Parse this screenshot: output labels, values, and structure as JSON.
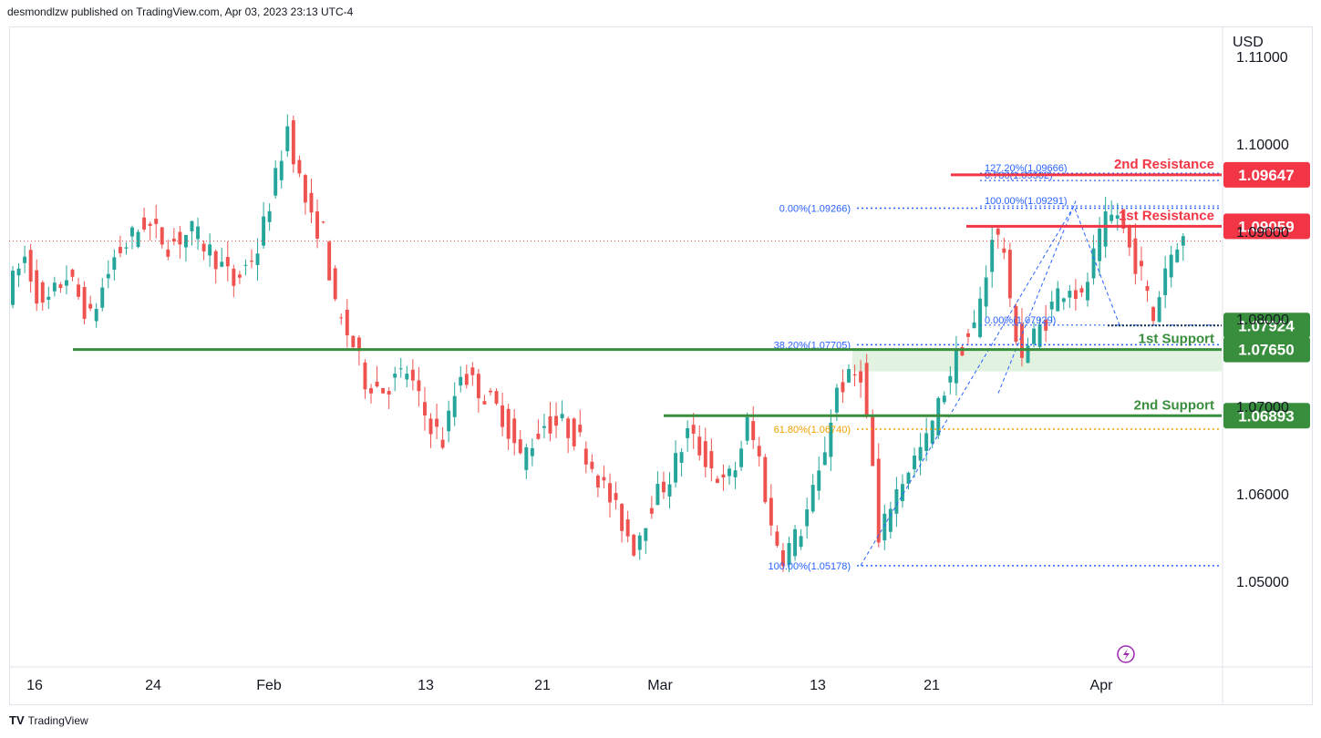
{
  "header": {
    "text": "desmondlzw published on TradingView.com, Apr 03, 2023 23:13 UTC-4"
  },
  "footer": {
    "logo": "TV",
    "brand": "TradingView"
  },
  "colors": {
    "up": "#26a69a",
    "down": "#ef5350",
    "resistance": "#f23645",
    "support": "#388e3c",
    "fib": "#2962ff",
    "fib618": "#f0a000"
  },
  "chart_data": {
    "type": "candlestick",
    "currency": "USD",
    "y_ticks": [
      "1.11000",
      "1.10000",
      "1.09000",
      "1.08000",
      "1.07000",
      "1.06000",
      "1.05000"
    ],
    "ylim": [
      1.03971,
      1.11474
    ],
    "x_ticks": [
      "16",
      "24",
      "Feb",
      "13",
      "21",
      "Mar",
      "13",
      "21",
      "Apr"
    ],
    "last_price": 1.0889,
    "levels": [
      {
        "name": "2nd Resistance",
        "value": 1.09647,
        "label": "1.09647",
        "kind": "resistance"
      },
      {
        "name": "1st Resistance",
        "value": 1.09059,
        "label": "1.09059",
        "kind": "resistance"
      },
      {
        "name": "",
        "value": 1.07924,
        "label": "1.07924",
        "kind": "support"
      },
      {
        "name": "1st Support",
        "value": 1.0765,
        "label": "1.07650",
        "kind": "support"
      },
      {
        "name": "2nd Support",
        "value": 1.06893,
        "label": "1.06893",
        "kind": "support"
      }
    ],
    "fib_retracement": [
      {
        "label": "0.00%(1.09266)",
        "value": 1.09266
      },
      {
        "label": "38.20%(1.07705)",
        "value": 1.07705
      },
      {
        "label": "61.80%(1.06740)",
        "value": 1.0674
      },
      {
        "label": "100.00%(1.05178)",
        "value": 1.05178
      }
    ],
    "fib_extension": [
      {
        "label": "127.20%(1.09666)",
        "value": 1.09666
      },
      {
        "label": "0.786(1.09582)",
        "value": 1.09582
      },
      {
        "label": "100.00%(1.09291)",
        "value": 1.09291
      },
      {
        "label": "0.00%(1.07929)",
        "value": 1.07929
      }
    ],
    "anchors": [
      {
        "x": 0,
        "y": 1.083
      },
      {
        "x": 3,
        "y": 1.087
      },
      {
        "x": 6,
        "y": 1.081
      },
      {
        "x": 10,
        "y": 1.085
      },
      {
        "x": 14,
        "y": 1.08
      },
      {
        "x": 18,
        "y": 1.087
      },
      {
        "x": 23,
        "y": 1.091
      },
      {
        "x": 27,
        "y": 1.0885
      },
      {
        "x": 31,
        "y": 1.09
      },
      {
        "x": 35,
        "y": 1.087
      },
      {
        "x": 38,
        "y": 1.084
      },
      {
        "x": 42,
        "y": 1.088
      },
      {
        "x": 45,
        "y": 1.096
      },
      {
        "x": 47,
        "y": 1.102
      },
      {
        "x": 49,
        "y": 1.096
      },
      {
        "x": 51,
        "y": 1.091
      },
      {
        "x": 53,
        "y": 1.09
      },
      {
        "x": 55,
        "y": 1.081
      },
      {
        "x": 58,
        "y": 1.077
      },
      {
        "x": 60,
        "y": 1.073
      },
      {
        "x": 63,
        "y": 1.072
      },
      {
        "x": 67,
        "y": 1.074
      },
      {
        "x": 70,
        "y": 1.069
      },
      {
        "x": 73,
        "y": 1.066
      },
      {
        "x": 76,
        "y": 1.074
      },
      {
        "x": 79,
        "y": 1.072
      },
      {
        "x": 83,
        "y": 1.069
      },
      {
        "x": 86,
        "y": 1.064
      },
      {
        "x": 90,
        "y": 1.068
      },
      {
        "x": 93,
        "y": 1.068
      },
      {
        "x": 96,
        "y": 1.066
      },
      {
        "x": 99,
        "y": 1.062
      },
      {
        "x": 102,
        "y": 1.058
      },
      {
        "x": 105,
        "y": 1.054
      },
      {
        "x": 108,
        "y": 1.059
      },
      {
        "x": 111,
        "y": 1.062
      },
      {
        "x": 114,
        "y": 1.067
      },
      {
        "x": 117,
        "y": 1.064
      },
      {
        "x": 120,
        "y": 1.061
      },
      {
        "x": 122,
        "y": 1.063
      },
      {
        "x": 124,
        "y": 1.068
      },
      {
        "x": 126,
        "y": 1.064
      },
      {
        "x": 128,
        "y": 1.056
      },
      {
        "x": 130,
        "y": 1.053
      },
      {
        "x": 133,
        "y": 1.056
      },
      {
        "x": 136,
        "y": 1.062
      },
      {
        "x": 139,
        "y": 1.072
      },
      {
        "x": 141,
        "y": 1.073
      },
      {
        "x": 143,
        "y": 1.074
      },
      {
        "x": 145,
        "y": 1.063
      },
      {
        "x": 146,
        "y": 1.054
      },
      {
        "x": 148,
        "y": 1.059
      },
      {
        "x": 151,
        "y": 1.063
      },
      {
        "x": 154,
        "y": 1.066
      },
      {
        "x": 156,
        "y": 1.07
      },
      {
        "x": 158,
        "y": 1.074
      },
      {
        "x": 160,
        "y": 1.077
      },
      {
        "x": 162,
        "y": 1.079
      },
      {
        "x": 164,
        "y": 1.085
      },
      {
        "x": 165,
        "y": 1.09
      },
      {
        "x": 167,
        "y": 1.088
      },
      {
        "x": 168,
        "y": 1.081
      },
      {
        "x": 170,
        "y": 1.076
      },
      {
        "x": 172,
        "y": 1.078
      },
      {
        "x": 174,
        "y": 1.08
      },
      {
        "x": 176,
        "y": 1.083
      },
      {
        "x": 178,
        "y": 1.084
      },
      {
        "x": 180,
        "y": 1.082
      },
      {
        "x": 182,
        "y": 1.087
      },
      {
        "x": 184,
        "y": 1.091
      },
      {
        "x": 186,
        "y": 1.092
      },
      {
        "x": 188,
        "y": 1.088
      },
      {
        "x": 190,
        "y": 1.085
      },
      {
        "x": 192,
        "y": 1.08
      },
      {
        "x": 194,
        "y": 1.086
      },
      {
        "x": 196,
        "y": 1.089
      }
    ]
  },
  "annotations": {
    "currency_label": "USD"
  }
}
